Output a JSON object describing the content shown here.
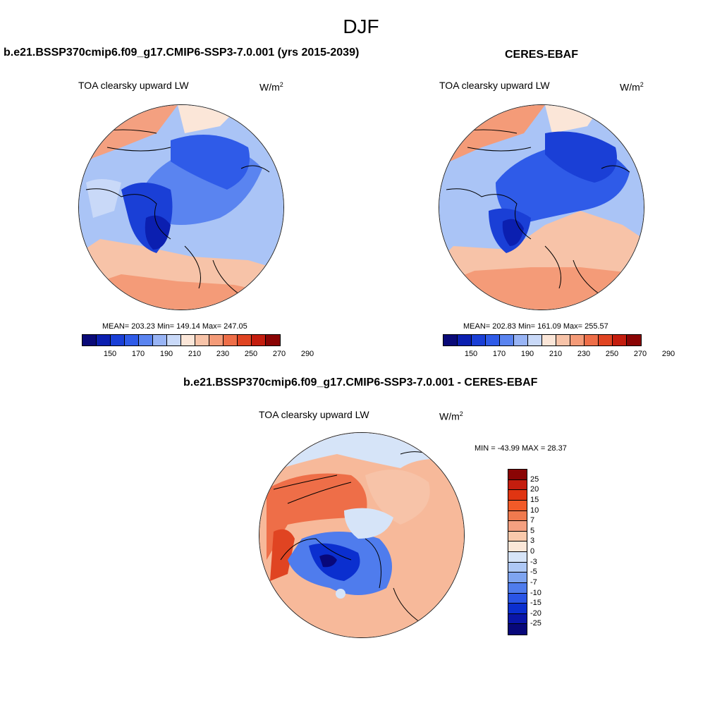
{
  "season": "DJF",
  "panels": {
    "model": {
      "title": "b.e21.BSSP370cmip6.f09_g17.CMIP6-SSP3-7.0.001 (yrs 2015-2039)",
      "variable": "TOA clearsky upward LW",
      "units": "W/m",
      "units_sup": "2",
      "stats": "MEAN= 203.23  Min= 149.14  Max= 247.05"
    },
    "obs": {
      "title": "CERES-EBAF",
      "variable": "TOA clearsky upward LW",
      "units": "W/m",
      "units_sup": "2",
      "stats": "MEAN= 202.83  Min= 161.09  Max= 255.57"
    },
    "diff": {
      "title": "b.e21.BSSP370cmip6.f09_g17.CMIP6-SSP3-7.0.001 - CERES-EBAF",
      "variable": "TOA clearsky upward LW",
      "units": "W/m",
      "units_sup": "2",
      "stats": "MIN = -43.99 MAX =  28.37"
    }
  },
  "colorbar_abs": {
    "colors": [
      "#0a0a78",
      "#0b1fb0",
      "#1a3fd6",
      "#2f5be8",
      "#5a84f0",
      "#98b4f5",
      "#c9d9f8",
      "#fbe6d8",
      "#f7c3a8",
      "#f49b78",
      "#ee6e48",
      "#e04422",
      "#c41d0e",
      "#8a0404"
    ],
    "ticks": [
      "150",
      "170",
      "190",
      "210",
      "230",
      "250",
      "270",
      "290"
    ]
  },
  "colorbar_diff": {
    "colors": [
      "#8a0404",
      "#c41d0e",
      "#e03512",
      "#f25a28",
      "#f07a4e",
      "#f4a080",
      "#f9c9ab",
      "#fbe7d8",
      "#d6e4f8",
      "#aec8f5",
      "#7ea4f0",
      "#4f7ced",
      "#2a55e6",
      "#0b2fcf",
      "#0a16a8",
      "#08087a"
    ],
    "ticks": [
      "25",
      "20",
      "15",
      "10",
      "7",
      "5",
      "3",
      "0",
      "-3",
      "-5",
      "-7",
      "-10",
      "-15",
      "-20",
      "-25"
    ]
  }
}
